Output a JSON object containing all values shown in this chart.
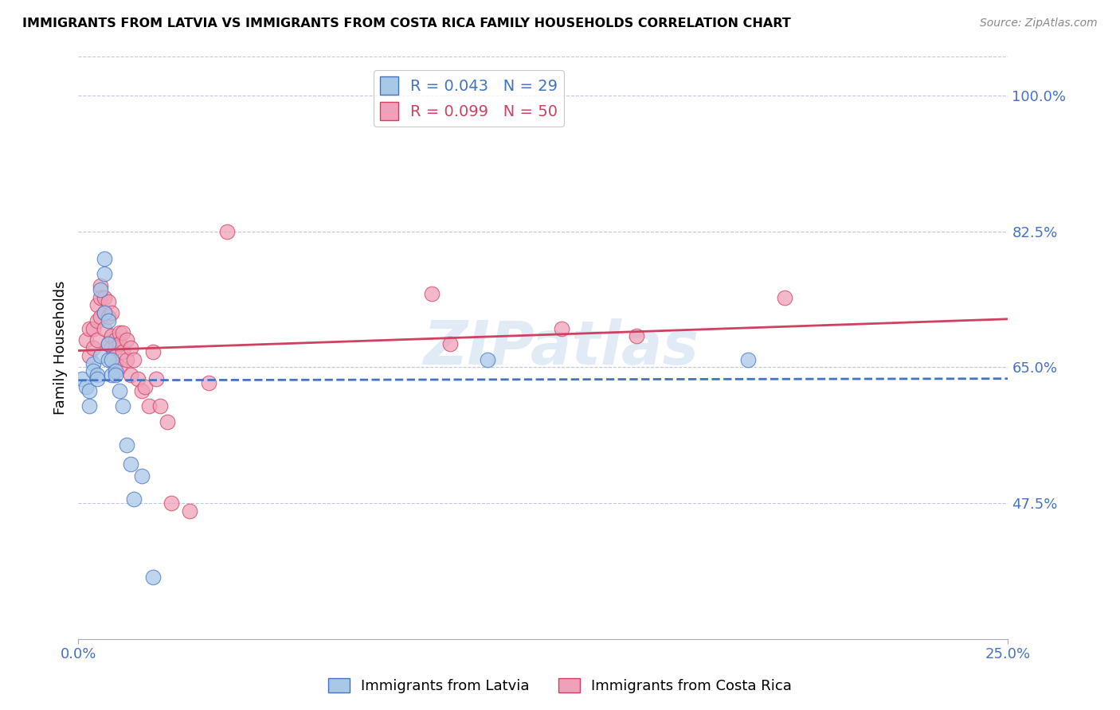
{
  "title": "IMMIGRANTS FROM LATVIA VS IMMIGRANTS FROM COSTA RICA FAMILY HOUSEHOLDS CORRELATION CHART",
  "source": "Source: ZipAtlas.com",
  "ylabel": "Family Households",
  "ytick_labels": [
    "100.0%",
    "82.5%",
    "65.0%",
    "47.5%"
  ],
  "ytick_vals": [
    1.0,
    0.825,
    0.65,
    0.475
  ],
  "xlim": [
    0.0,
    0.25
  ],
  "ylim": [
    0.3,
    1.05
  ],
  "watermark": "ZIPatlas",
  "legend_latvia_r": "R = 0.043",
  "legend_latvia_n": "N = 29",
  "legend_costa_rica_r": "R = 0.099",
  "legend_costa_rica_n": "N = 50",
  "color_latvia": "#A8C8E8",
  "color_costa_rica": "#F0A0B8",
  "trendline_latvia_color": "#4472C4",
  "trendline_costa_rica_color": "#D04060",
  "background_color": "#FFFFFF",
  "grid_color": "#C0C8D8",
  "axis_label_color": "#4472C4",
  "latvia_x": [
    0.001,
    0.002,
    0.003,
    0.003,
    0.004,
    0.004,
    0.005,
    0.005,
    0.006,
    0.006,
    0.007,
    0.007,
    0.007,
    0.008,
    0.008,
    0.008,
    0.009,
    0.009,
    0.01,
    0.01,
    0.011,
    0.012,
    0.013,
    0.014,
    0.015,
    0.017,
    0.02,
    0.11,
    0.18
  ],
  "latvia_y": [
    0.635,
    0.625,
    0.62,
    0.6,
    0.655,
    0.645,
    0.64,
    0.635,
    0.665,
    0.75,
    0.79,
    0.77,
    0.72,
    0.71,
    0.68,
    0.66,
    0.66,
    0.64,
    0.645,
    0.64,
    0.62,
    0.6,
    0.55,
    0.525,
    0.48,
    0.51,
    0.38,
    0.66,
    0.66
  ],
  "costa_rica_x": [
    0.002,
    0.003,
    0.003,
    0.004,
    0.004,
    0.005,
    0.005,
    0.005,
    0.006,
    0.006,
    0.006,
    0.007,
    0.007,
    0.007,
    0.008,
    0.008,
    0.008,
    0.009,
    0.009,
    0.009,
    0.01,
    0.01,
    0.01,
    0.011,
    0.011,
    0.011,
    0.012,
    0.012,
    0.013,
    0.013,
    0.014,
    0.014,
    0.015,
    0.016,
    0.017,
    0.018,
    0.019,
    0.02,
    0.021,
    0.022,
    0.024,
    0.025,
    0.03,
    0.035,
    0.04,
    0.095,
    0.1,
    0.13,
    0.15,
    0.19
  ],
  "costa_rica_y": [
    0.685,
    0.7,
    0.665,
    0.7,
    0.675,
    0.73,
    0.71,
    0.685,
    0.755,
    0.74,
    0.715,
    0.74,
    0.72,
    0.7,
    0.735,
    0.715,
    0.68,
    0.72,
    0.69,
    0.675,
    0.685,
    0.675,
    0.655,
    0.695,
    0.68,
    0.65,
    0.695,
    0.67,
    0.685,
    0.66,
    0.675,
    0.64,
    0.66,
    0.635,
    0.62,
    0.625,
    0.6,
    0.67,
    0.635,
    0.6,
    0.58,
    0.475,
    0.465,
    0.63,
    0.825,
    0.745,
    0.68,
    0.7,
    0.69,
    0.74
  ]
}
